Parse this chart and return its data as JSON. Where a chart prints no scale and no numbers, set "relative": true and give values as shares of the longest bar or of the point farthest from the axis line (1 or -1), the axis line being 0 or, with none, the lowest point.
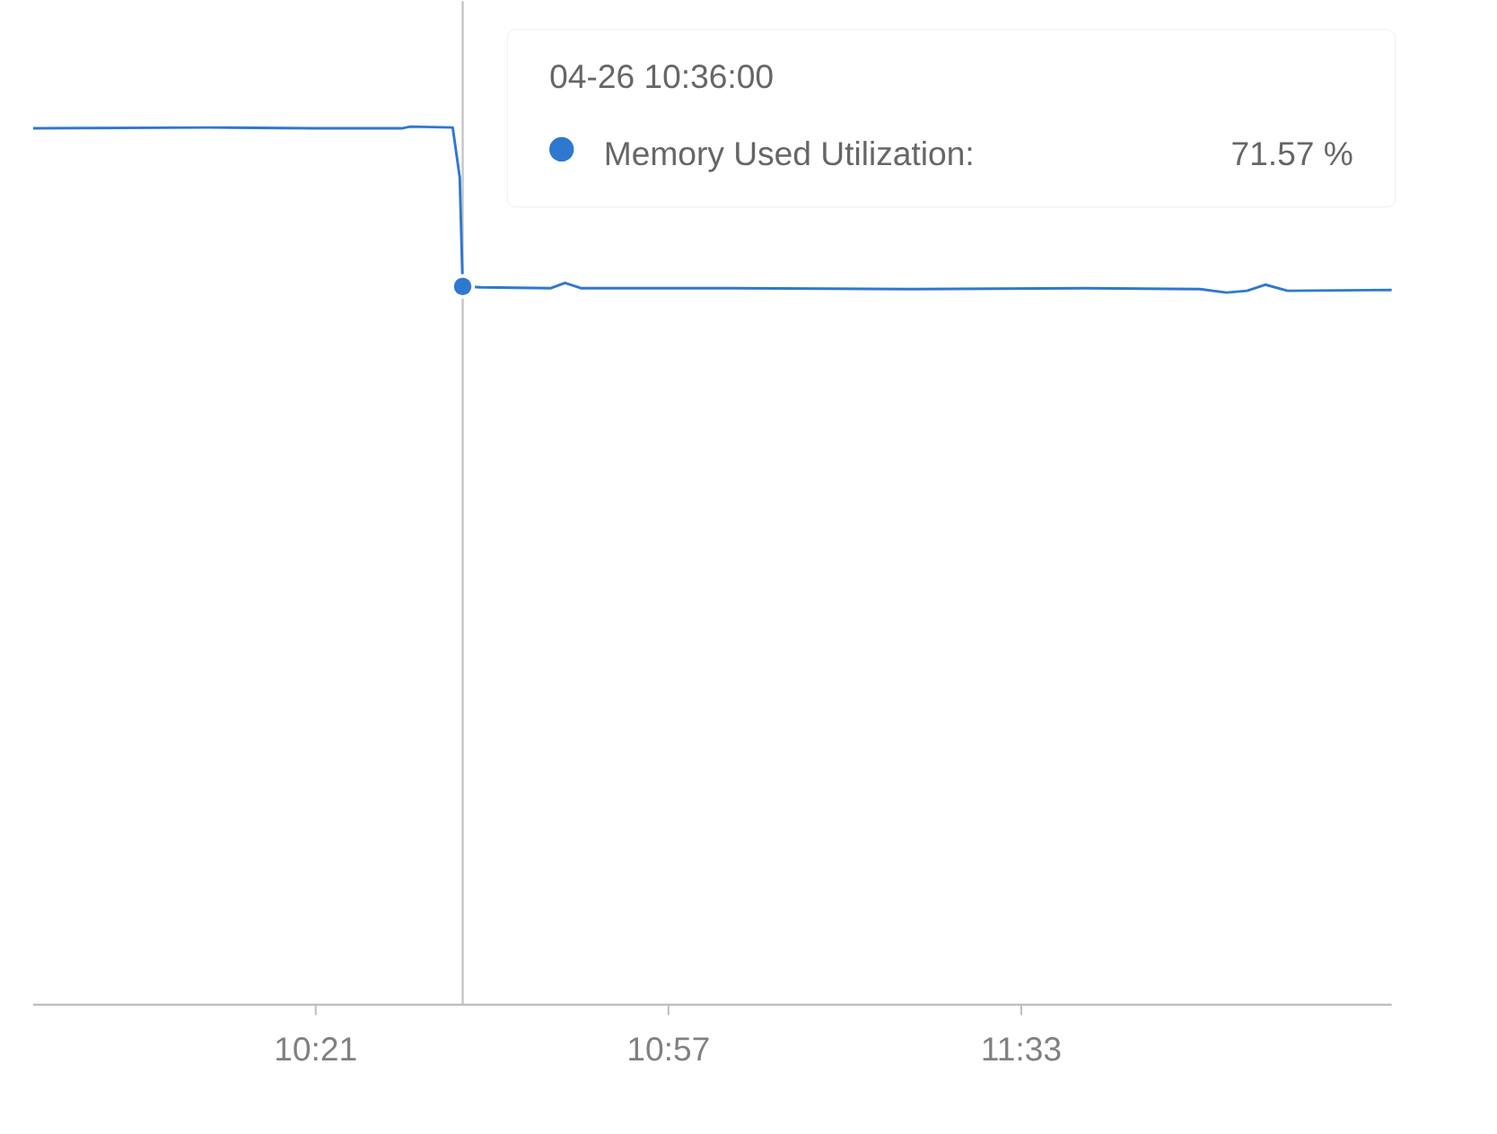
{
  "chart_data": {
    "type": "line",
    "x": [
      9.8694,
      10.168,
      10.347,
      10.496,
      10.511,
      10.583,
      10.595,
      10.6,
      10.631,
      10.75,
      10.774,
      10.801,
      11.063,
      11.362,
      11.66,
      11.854,
      11.899,
      11.934,
      11.965,
      12.003,
      12.18
    ],
    "series": [
      {
        "name": "Memory Used Utilization:",
        "color": "#2f78cf",
        "values": [
          0.998,
          0.999,
          0.998,
          0.998,
          1,
          0.999,
          0.942,
          0.818,
          0.817,
          0.816,
          0.822,
          0.816,
          0.816,
          0.815,
          0.816,
          0.815,
          0.811,
          0.813,
          0.82,
          0.813,
          0.814
        ]
      }
    ],
    "xlim": [
      9.8694,
      12.18
    ],
    "relative": true,
    "xticks": [
      {
        "value": 10.35,
        "label": "10:21"
      },
      {
        "value": 10.95,
        "label": "10:57"
      },
      {
        "value": 11.55,
        "label": "11:33"
      }
    ],
    "tick_labels": "x",
    "legend": "top right",
    "marker": "none",
    "line_style": "solid",
    "ref_lines": [
      {
        "axis": "x",
        "value": 10.6,
        "color": "#c4c4c4"
      }
    ],
    "annotations": [
      "04-26 10:36:00",
      "71.57 %"
    ]
  }
}
